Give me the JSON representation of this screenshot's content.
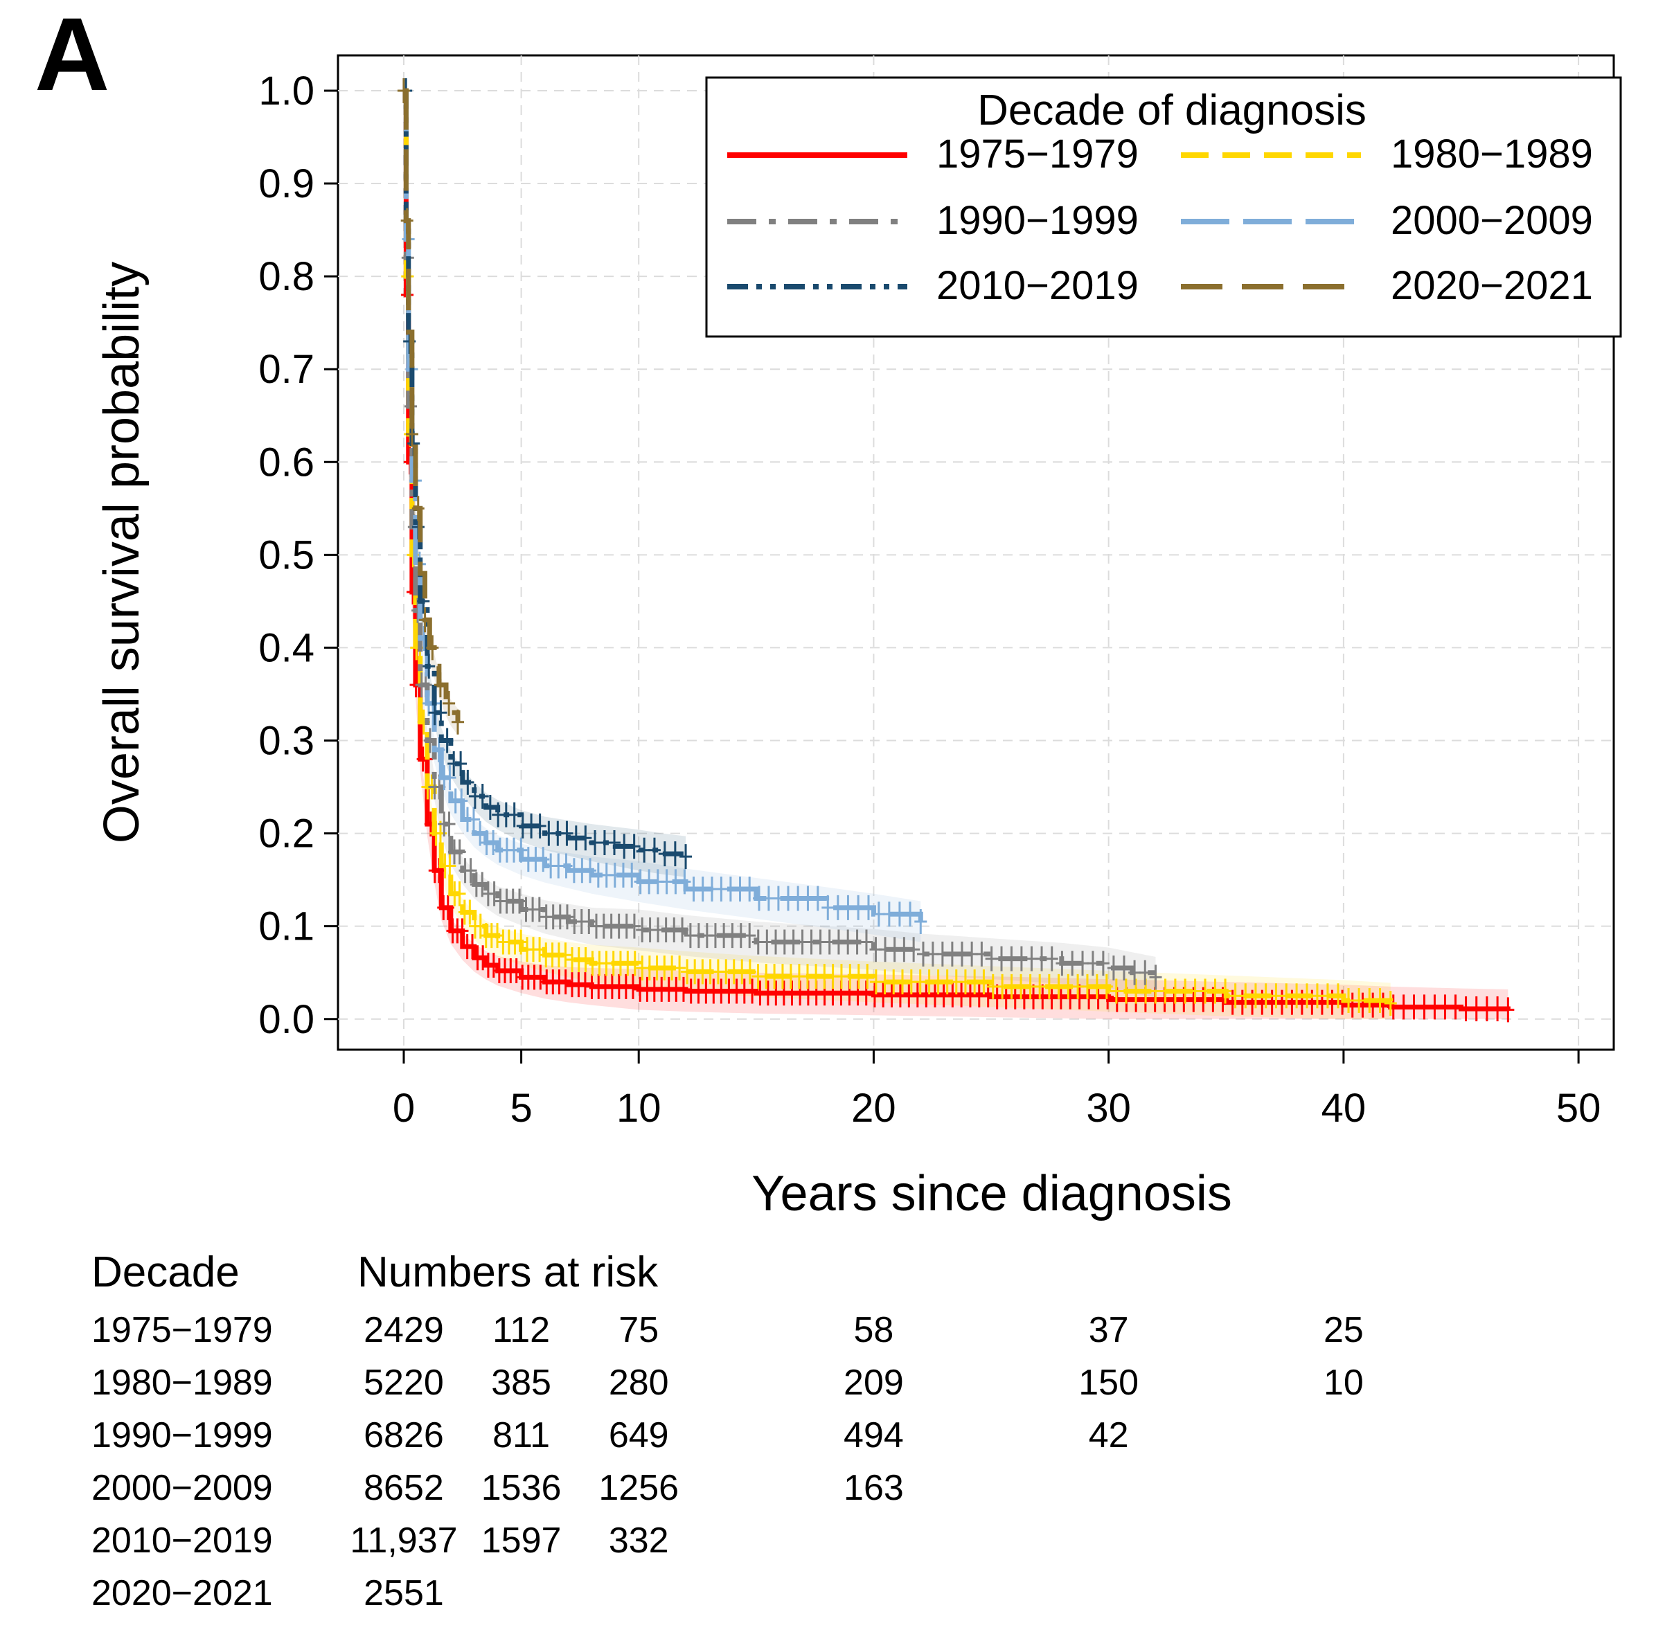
{
  "panel_label": "A",
  "chart_data": {
    "type": "line",
    "subtype": "kaplan-meier",
    "xlabel": "Years since diagnosis",
    "ylabel": "Overall survival probability",
    "xlim": [
      -2.8,
      51.5
    ],
    "ylim": [
      -0.033,
      1.038
    ],
    "x_ticks": [
      0,
      5,
      10,
      20,
      30,
      40,
      50
    ],
    "y_ticks": [
      0.0,
      0.1,
      0.2,
      0.3,
      0.4,
      0.5,
      0.6,
      0.7,
      0.8,
      0.9,
      1.0
    ],
    "x_tick_labels": [
      "0",
      "5",
      "10",
      "20",
      "30",
      "40",
      "50"
    ],
    "y_tick_labels": [
      "0.0",
      "0.1",
      "0.2",
      "0.3",
      "0.4",
      "0.5",
      "0.6",
      "0.7",
      "0.8",
      "0.9",
      "1.0"
    ],
    "grid": true,
    "legend": {
      "title": "Decade of diagnosis",
      "position": "top-right"
    },
    "series": [
      {
        "name": "1975−1979",
        "color": "#ff0000",
        "dash": "solid",
        "x": [
          0,
          0.1,
          0.2,
          0.35,
          0.5,
          0.7,
          1.0,
          1.3,
          1.6,
          2.0,
          2.5,
          3.0,
          3.5,
          4.0,
          5.0,
          6.0,
          7.0,
          8.0,
          10.0,
          12.0,
          15.0,
          20.0,
          25.0,
          30.0,
          35.0,
          40.0,
          42.0,
          45.0,
          47.0
        ],
        "y": [
          1.0,
          0.78,
          0.6,
          0.46,
          0.36,
          0.28,
          0.21,
          0.16,
          0.12,
          0.095,
          0.078,
          0.066,
          0.058,
          0.052,
          0.045,
          0.04,
          0.037,
          0.035,
          0.032,
          0.03,
          0.028,
          0.026,
          0.024,
          0.021,
          0.018,
          0.015,
          0.013,
          0.011,
          0.01
        ]
      },
      {
        "name": "1980−1989",
        "color": "#ffd700",
        "dash": "dash",
        "x": [
          0,
          0.1,
          0.2,
          0.35,
          0.5,
          0.7,
          1.0,
          1.3,
          1.6,
          2.0,
          2.5,
          3.0,
          3.5,
          4.0,
          5.0,
          6.0,
          7.0,
          8.0,
          10.0,
          12.0,
          15.0,
          20.0,
          25.0,
          30.0,
          35.0,
          40.0,
          42.0
        ],
        "y": [
          1.0,
          0.8,
          0.63,
          0.5,
          0.4,
          0.32,
          0.25,
          0.2,
          0.165,
          0.135,
          0.115,
          0.1,
          0.09,
          0.083,
          0.075,
          0.069,
          0.064,
          0.06,
          0.055,
          0.051,
          0.046,
          0.04,
          0.035,
          0.03,
          0.025,
          0.02,
          0.017
        ]
      },
      {
        "name": "1990−1999",
        "color": "#808080",
        "dash": "dashdot",
        "x": [
          0,
          0.1,
          0.2,
          0.35,
          0.5,
          0.7,
          1.0,
          1.3,
          1.6,
          2.0,
          2.5,
          3.0,
          3.5,
          4.0,
          5.0,
          6.0,
          7.0,
          8.0,
          10.0,
          12.0,
          15.0,
          20.0,
          22.0,
          25.0,
          28.0,
          30.0,
          31.0,
          32.0
        ],
        "y": [
          1.0,
          0.82,
          0.66,
          0.53,
          0.44,
          0.36,
          0.3,
          0.25,
          0.21,
          0.18,
          0.16,
          0.145,
          0.135,
          0.127,
          0.118,
          0.11,
          0.105,
          0.1,
          0.096,
          0.09,
          0.083,
          0.075,
          0.07,
          0.065,
          0.06,
          0.055,
          0.05,
          0.045
        ]
      },
      {
        "name": "2000−2009",
        "color": "#7fadd9",
        "dash": "longdash",
        "x": [
          0,
          0.1,
          0.2,
          0.35,
          0.5,
          0.7,
          1.0,
          1.3,
          1.6,
          2.0,
          2.5,
          3.0,
          3.5,
          4.0,
          5.0,
          6.0,
          7.0,
          8.0,
          10.0,
          12.0,
          15.0,
          18.0,
          20.0,
          22.0
        ],
        "y": [
          1.0,
          0.84,
          0.7,
          0.58,
          0.49,
          0.41,
          0.34,
          0.29,
          0.26,
          0.235,
          0.215,
          0.2,
          0.19,
          0.182,
          0.172,
          0.165,
          0.16,
          0.155,
          0.148,
          0.14,
          0.13,
          0.12,
          0.113,
          0.105
        ]
      },
      {
        "name": "2010−2019",
        "color": "#1a4a6e",
        "dash": "dashdotdot",
        "x": [
          0,
          0.1,
          0.2,
          0.35,
          0.5,
          0.7,
          1.0,
          1.3,
          1.6,
          2.0,
          2.5,
          3.0,
          3.5,
          4.0,
          5.0,
          6.0,
          7.0,
          8.0,
          9.0,
          10.0,
          11.0,
          12.0
        ],
        "y": [
          1.0,
          0.86,
          0.73,
          0.62,
          0.53,
          0.45,
          0.38,
          0.33,
          0.3,
          0.275,
          0.255,
          0.24,
          0.228,
          0.22,
          0.208,
          0.2,
          0.195,
          0.19,
          0.186,
          0.182,
          0.178,
          0.175
        ]
      },
      {
        "name": "2020−2021",
        "color": "#8b6f2e",
        "dash": "dashlong",
        "x": [
          0,
          0.1,
          0.2,
          0.35,
          0.5,
          0.7,
          0.9,
          1.1,
          1.3,
          1.5,
          1.8,
          2.0,
          2.3
        ],
        "y": [
          1.0,
          0.86,
          0.74,
          0.63,
          0.55,
          0.48,
          0.43,
          0.4,
          0.38,
          0.36,
          0.34,
          0.33,
          0.32
        ]
      }
    ]
  },
  "risk_table": {
    "header_decade": "Decade",
    "header_numbers": "Numbers at risk",
    "time_points": [
      0,
      5,
      10,
      20,
      30,
      40
    ],
    "rows": [
      {
        "decade": "1975−1979",
        "values": [
          "2429",
          "112",
          "75",
          "58",
          "37",
          "25"
        ]
      },
      {
        "decade": "1980−1989",
        "values": [
          "5220",
          "385",
          "280",
          "209",
          "150",
          "10"
        ]
      },
      {
        "decade": "1990−1999",
        "values": [
          "6826",
          "811",
          "649",
          "494",
          "42",
          ""
        ]
      },
      {
        "decade": "2000−2009",
        "values": [
          "8652",
          "1536",
          "1256",
          "163",
          "",
          ""
        ]
      },
      {
        "decade": "2010−2019",
        "values": [
          "11,937",
          "1597",
          "332",
          "",
          "",
          ""
        ]
      },
      {
        "decade": "2020−2021",
        "values": [
          "2551",
          "",
          "",
          "",
          "",
          ""
        ]
      }
    ]
  }
}
